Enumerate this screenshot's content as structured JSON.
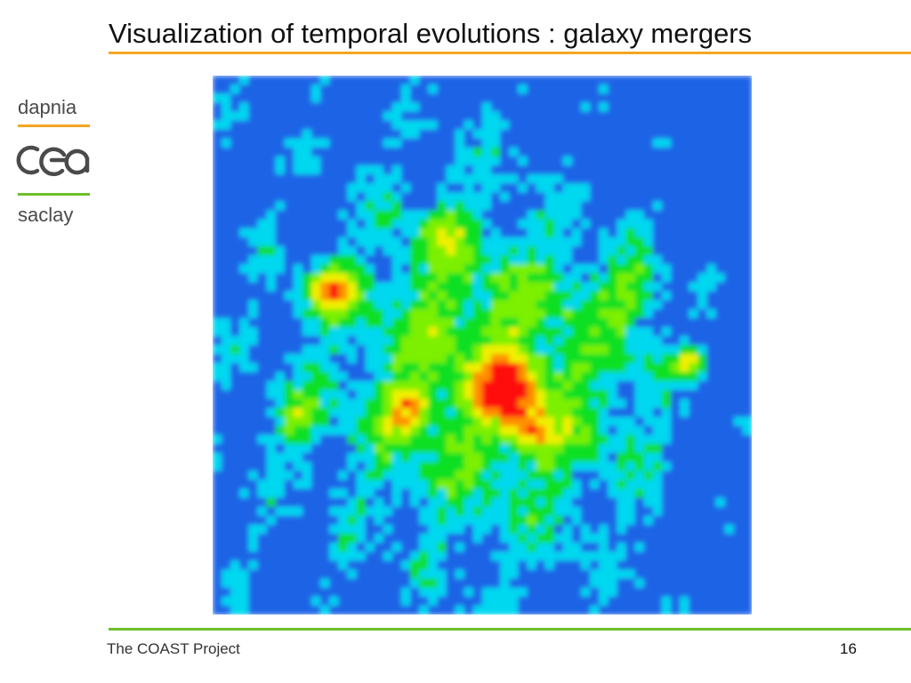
{
  "slide": {
    "title": "Visualization of temporal evolutions : galaxy mergers",
    "footer": "The COAST Project",
    "page_number": "16"
  },
  "logo": {
    "top_word": "dapnia",
    "bottom_word": "saclay",
    "mark_icon": "cea-logo-icon"
  },
  "colors": {
    "title_rule": "#f5a623",
    "footer_rule": "#6cbf2a",
    "colormap": [
      "#1e64e6",
      "#00d8f0",
      "#10e020",
      "#7cf000",
      "#f0f000",
      "#ff9000",
      "#ff1010"
    ]
  }
}
